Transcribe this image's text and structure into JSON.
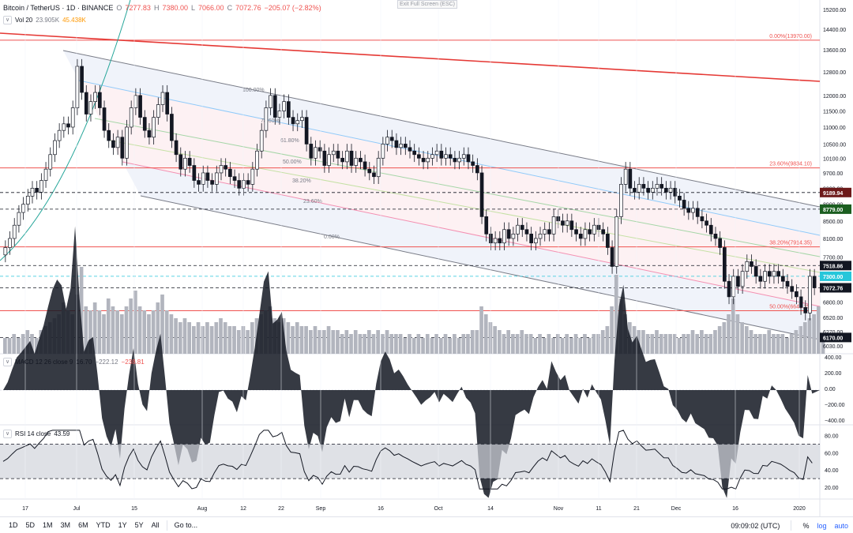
{
  "header": {
    "symbol": "Bitcoin / TetherUS · 1D · BINANCE",
    "o_label": "O",
    "o_value": "7277.83",
    "h_label": "H",
    "h_value": "7380.00",
    "l_label": "L",
    "l_value": "7066.00",
    "c_label": "C",
    "c_value": "7072.76",
    "change": "−205.07 (−2.82%)",
    "vol_label": "Vol 20",
    "vol_value1": "23.905K",
    "vol_value2": "45.438K",
    "exit_fullscreen": "Exit Full Screen (ESC)"
  },
  "macd_legend": {
    "label": "MACD 12 26 close 9",
    "v1": "16.70",
    "v2": "−222.12",
    "v3": "−238.81"
  },
  "rsi_legend": {
    "label": "RSI 14 close",
    "v1": "43.59"
  },
  "bottom": {
    "ranges": [
      "1D",
      "5D",
      "1M",
      "3M",
      "6M",
      "YTD",
      "1Y",
      "5Y",
      "All"
    ],
    "goto": "Go to...",
    "clock": "09:09:02 (UTC)",
    "percent": "%",
    "log": "log",
    "auto": "auto"
  },
  "colors": {
    "up": "#ffffff",
    "down": "#131722",
    "fib_line": "#ef5350",
    "trend": "#e53935",
    "macd_hist": "#131722",
    "rsi_band": "#d1d4dc",
    "price_label_dark": "#131722",
    "price_label_cyan": "#26c6da",
    "price_label_green": "#1b5e20",
    "price_label_maroon": "#6d1a1a"
  },
  "chart_data": {
    "type": "candlestick",
    "x_tick_labels": [
      "17",
      "Jul",
      "15",
      "Aug",
      "12",
      "22",
      "Sep",
      "16",
      "Oct",
      "14",
      "Nov",
      "11",
      "21",
      "Dec",
      "16",
      "2020"
    ],
    "y_tick_labels": [
      "15200.00",
      "14400.00",
      "13600.00",
      "12800.00",
      "12000.00",
      "11500.00",
      "11000.00",
      "10500.00",
      "10100.00",
      "9700.00",
      "9300.00",
      "8900.00",
      "8500.00",
      "8100.00",
      "7700.00",
      "7300.00",
      "6800.00",
      "6520.00",
      "6270.00",
      "6030.00"
    ],
    "price_labels": [
      {
        "text": "9189.94",
        "value": 9189.94,
        "style": "maroon"
      },
      {
        "text": "8779.00",
        "value": 8779,
        "style": "green"
      },
      {
        "text": "7518.86",
        "value": 7518.86,
        "style": "dark"
      },
      {
        "text": "7300.00",
        "value": 7300,
        "style": "cyan"
      },
      {
        "text": "7072.76",
        "value": 7072.76,
        "style": "dark"
      },
      {
        "text": "6170.00",
        "value": 6170,
        "style": "dark"
      }
    ],
    "fib_retracement": [
      {
        "label": "0.00%(13970.00)",
        "value": 13970
      },
      {
        "label": "23.60%(9834.10)",
        "value": 9834.1
      },
      {
        "label": "38.20%(7914.35)",
        "value": 7914.35
      },
      {
        "label": "50.00%(6640.25)",
        "value": 6640.25
      }
    ],
    "channel_levels": [
      "100.00%",
      "78.60%",
      "61.80%",
      "50.00%",
      "38.20%",
      "23.60%",
      "0.00%"
    ],
    "candles_close": [
      7900,
      8100,
      8400,
      8700,
      8900,
      9100,
      9300,
      9200,
      9500,
      9800,
      10200,
      10600,
      10900,
      11100,
      11000,
      11600,
      13000,
      12100,
      11400,
      11800,
      12100,
      11600,
      10900,
      10600,
      10400,
      10700,
      10100,
      11000,
      11600,
      12000,
      11300,
      10900,
      10700,
      11300,
      11700,
      12100,
      11400,
      10600,
      10200,
      9800,
      10100,
      9900,
      9500,
      9400,
      9700,
      9500,
      9400,
      9700,
      9900,
      9800,
      9600,
      9500,
      9300,
      9500,
      9400,
      9800,
      10300,
      10900,
      11600,
      12000,
      11300,
      11500,
      11800,
      11300,
      11100,
      11200,
      11300,
      10500,
      10100,
      10400,
      10300,
      9900,
      10200,
      10300,
      10100,
      10000,
      10300,
      9900,
      10100,
      10000,
      9800,
      9700,
      9600,
      10100,
      10500,
      10700,
      10600,
      10400,
      10500,
      10400,
      10300,
      10200,
      10100,
      10000,
      10100,
      10200,
      10300,
      10100,
      10200,
      10100,
      10000,
      10100,
      10200,
      10000,
      9900,
      9700,
      8600,
      8200,
      8000,
      8100,
      8000,
      8300,
      8100,
      8200,
      8400,
      8300,
      8200,
      8000,
      8100,
      8200,
      8300,
      8200,
      8600,
      8500,
      8400,
      8500,
      8300,
      8200,
      8100,
      8300,
      8200,
      8400,
      8300,
      8200,
      7900,
      7500,
      8600,
      9400,
      9800,
      9300,
      9200,
      9400,
      9300,
      9200,
      9300,
      9400,
      9300,
      9200,
      9300,
      9100,
      9000,
      8800,
      8700,
      8800,
      8600,
      8500,
      8400,
      8200,
      8100,
      7900,
      7200,
      6900,
      7300,
      7100,
      7400,
      7600,
      7500,
      7300,
      7200,
      7400,
      7300,
      7400,
      7300,
      7200,
      7100,
      7000,
      6900,
      6700,
      6600,
      7300,
      7073
    ],
    "volumes": [
      4,
      4,
      5,
      4,
      5,
      6,
      5,
      4,
      6,
      7,
      8,
      9,
      10,
      13,
      11,
      10,
      15,
      22,
      12,
      11,
      13,
      11,
      10,
      14,
      12,
      11,
      10,
      12,
      14,
      16,
      12,
      11,
      10,
      11,
      13,
      15,
      11,
      10,
      9,
      8,
      9,
      8,
      7,
      8,
      7,
      8,
      7,
      8,
      9,
      8,
      7,
      7,
      6,
      7,
      6,
      8,
      9,
      10,
      11,
      12,
      9,
      8,
      9,
      8,
      7,
      8,
      7,
      7,
      6,
      7,
      6,
      6,
      7,
      6,
      6,
      5,
      6,
      5,
      6,
      5,
      5,
      6,
      5,
      6,
      5,
      6,
      5,
      5,
      5,
      4,
      5,
      4,
      5,
      4,
      5,
      4,
      5,
      4,
      5,
      4,
      5,
      4,
      5,
      5,
      6,
      6,
      12,
      10,
      8,
      7,
      6,
      5,
      6,
      5,
      5,
      6,
      5,
      5,
      4,
      5,
      4,
      5,
      4,
      5,
      4,
      5,
      4,
      5,
      4,
      5,
      4,
      5,
      5,
      6,
      7,
      12,
      20,
      14,
      10,
      8,
      7,
      6,
      6,
      5,
      5,
      6,
      5,
      5,
      5,
      5,
      4,
      5,
      5,
      6,
      5,
      6,
      5,
      5,
      6,
      7,
      8,
      10,
      14,
      10,
      8,
      7,
      6,
      5,
      5,
      5,
      6,
      5,
      5,
      5,
      4,
      5,
      6,
      7,
      8,
      9,
      10,
      12,
      4
    ],
    "macd_axis": [
      "400.00",
      "200.00",
      "0.00",
      "−200.00",
      "−400.00"
    ],
    "rsi_axis": [
      "80.00",
      "60.00",
      "40.00",
      "20.00"
    ],
    "rsi_band": [
      30,
      70
    ]
  }
}
